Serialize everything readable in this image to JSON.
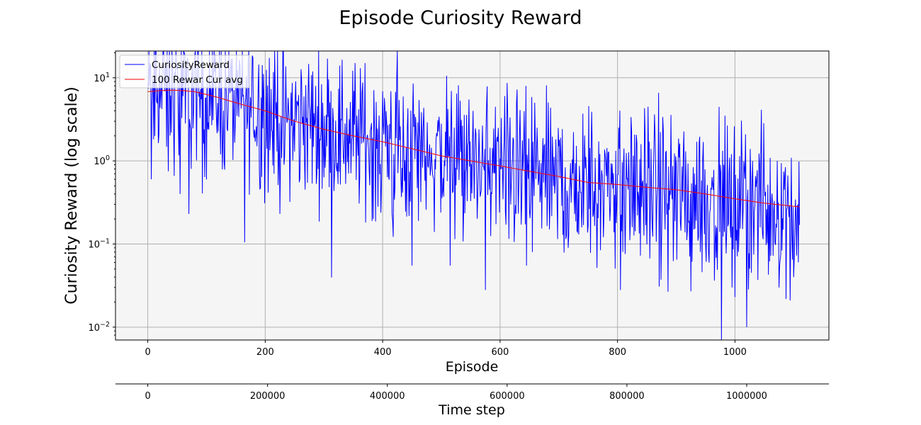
{
  "chart_data": {
    "type": "line",
    "title": "Episode Curiosity Reward",
    "xlabel": "Episode",
    "ylabel": "Curiosity Reward (log scale)",
    "secondary_xlabel": "Time step",
    "y_scale": "log",
    "ylim": [
      0.007,
      21
    ],
    "xlim": [
      -55,
      1160
    ],
    "grid": true,
    "legend_position": "top-left",
    "x_ticks": [
      0,
      200,
      400,
      600,
      800,
      1000
    ],
    "x_tick_labels": [
      "0",
      "200",
      "400",
      "600",
      "800",
      "1000"
    ],
    "y_ticks": [
      0.01,
      0.1,
      1,
      10
    ],
    "y_tick_labels": [
      {
        "base": "10",
        "exp": "−2"
      },
      {
        "base": "10",
        "exp": "−1"
      },
      {
        "base": "10",
        "exp": "0"
      },
      {
        "base": "10",
        "exp": "1"
      }
    ],
    "secondary_x_ticks": [
      0,
      200000,
      400000,
      600000,
      800000,
      1000000
    ],
    "secondary_x_tick_labels": [
      "0",
      "200000",
      "400000",
      "600000",
      "800000",
      "1000000"
    ],
    "series": [
      {
        "name": "CuriosityReward",
        "color": "#0000ff",
        "x_range": [
          0,
          1110
        ],
        "trend_x": [
          0,
          100,
          200,
          300,
          400,
          500,
          600,
          700,
          800,
          900,
          1000,
          1110
        ],
        "trend_y": [
          7.0,
          6.5,
          4.2,
          2.6,
          1.7,
          1.15,
          0.85,
          0.62,
          0.5,
          0.42,
          0.34,
          0.28
        ],
        "log_spread": 0.45,
        "samples": [
          {
            "x": 5,
            "y": 14
          },
          {
            "x": 6,
            "y": 0.6
          },
          {
            "x": 12,
            "y": 2.0
          },
          {
            "x": 30,
            "y": 12
          },
          {
            "x": 35,
            "y": 0.75
          },
          {
            "x": 55,
            "y": 0.4
          },
          {
            "x": 70,
            "y": 0.23
          },
          {
            "x": 165,
            "y": 0.105
          },
          {
            "x": 225,
            "y": 0.23
          },
          {
            "x": 450,
            "y": 0.055
          },
          {
            "x": 515,
            "y": 0.055
          },
          {
            "x": 575,
            "y": 0.028
          },
          {
            "x": 645,
            "y": 0.055
          },
          {
            "x": 805,
            "y": 0.028
          },
          {
            "x": 925,
            "y": 0.027
          },
          {
            "x": 995,
            "y": 0.03
          },
          {
            "x": 1000,
            "y": 0.023
          },
          {
            "x": 1020,
            "y": 0.01
          },
          {
            "x": 1030,
            "y": 1.0
          },
          {
            "x": 1075,
            "y": 0.03
          },
          {
            "x": 1100,
            "y": 0.04
          },
          {
            "x": 1110,
            "y": 0.17
          }
        ]
      },
      {
        "name": "100 Rewar Cur avg",
        "color": "#ff0000",
        "x": [
          0,
          20,
          40,
          60,
          80,
          100,
          120,
          150,
          200,
          250,
          300,
          350,
          400,
          450,
          500,
          550,
          600,
          650,
          700,
          750,
          800,
          850,
          900,
          950,
          1000,
          1050,
          1110
        ],
        "y": [
          6.8,
          7.0,
          7.1,
          7.0,
          6.8,
          6.3,
          5.8,
          5.0,
          4.0,
          3.0,
          2.4,
          2.0,
          1.7,
          1.4,
          1.15,
          1.0,
          0.87,
          0.75,
          0.65,
          0.55,
          0.52,
          0.48,
          0.45,
          0.4,
          0.35,
          0.31,
          0.28
        ]
      }
    ]
  }
}
